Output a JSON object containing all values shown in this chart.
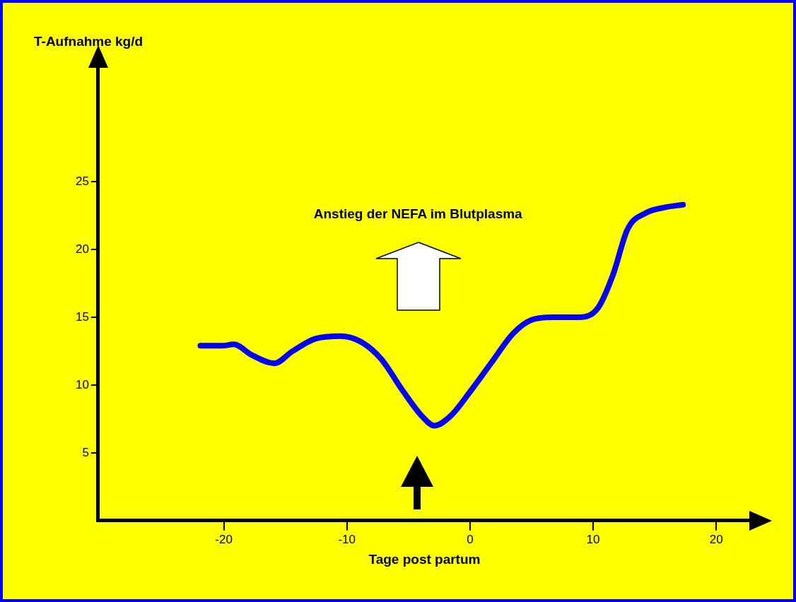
{
  "chart_data": {
    "type": "line",
    "xlabel": "Tage post partum",
    "ylabel": "T-Aufnahme kg/d",
    "annotations": [
      "Anstieg der NEFA im Blutplasma"
    ],
    "series": [
      {
        "color": "#0000ff",
        "x": [
          -21.9,
          -20.1,
          -19.2,
          -17.7,
          -15.9,
          -14.4,
          -12.6,
          -10.5,
          -8.7,
          -7.2,
          -5.4,
          -3.9,
          -2.9,
          -1.6,
          0,
          1.7,
          3.5,
          5.0,
          6.8,
          8.9,
          10.4,
          11.6,
          12.8,
          14.3,
          15.8,
          17.3
        ],
        "values": [
          12.9,
          12.9,
          13.0,
          12.2,
          11.6,
          12.5,
          13.4,
          13.6,
          13.1,
          11.9,
          9.5,
          7.7,
          7.0,
          7.7,
          9.5,
          11.6,
          13.8,
          14.8,
          15.0,
          15.0,
          15.7,
          18.1,
          21.5,
          22.7,
          23.1,
          23.3
        ]
      }
    ],
    "xlim": [
      -30.2,
      22.8
    ],
    "ylim": [
      0,
      33.5
    ],
    "xticks": [
      -20,
      -10,
      0,
      10,
      20
    ],
    "yticks": [
      5,
      10,
      15,
      20,
      25
    ],
    "grid": false,
    "legend": false,
    "marker": "none",
    "line_style": "solid"
  }
}
